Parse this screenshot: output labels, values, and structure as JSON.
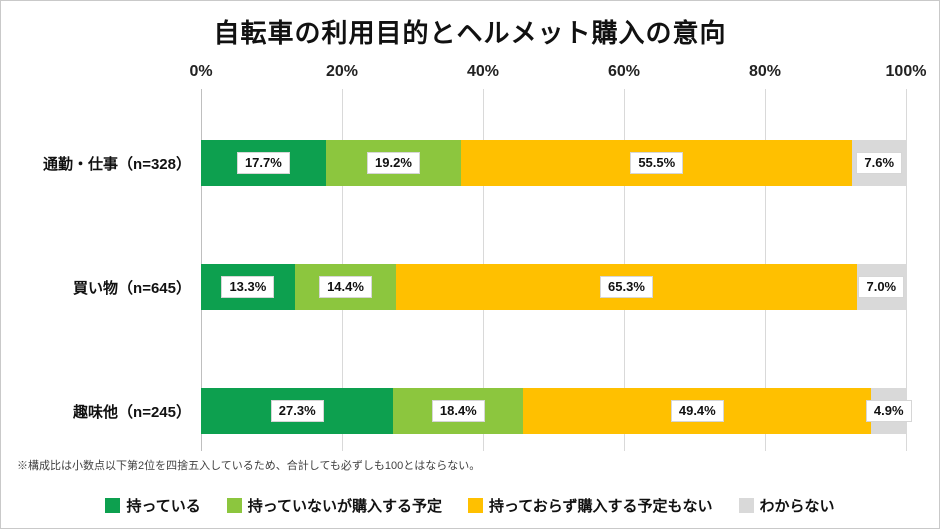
{
  "chart_data": {
    "type": "bar",
    "orientation": "horizontal",
    "stacked": true,
    "title": "自転車の利用目的とヘルメット購入の意向",
    "footnote": "※構成比は小数点以下第2位を四捨五入しているため、合計しても必ずしも100とはならない。",
    "x_ticks": [
      "0%",
      "20%",
      "40%",
      "60%",
      "80%",
      "100%"
    ],
    "xlim": [
      0,
      100
    ],
    "grid": true,
    "legend_position": "bottom",
    "categories": [
      "通勤・仕事（n=328）",
      "買い物（n=645）",
      "趣味他（n=245）"
    ],
    "series": [
      {
        "name": "持っている",
        "color": "#0da04f",
        "values": [
          17.7,
          13.3,
          27.3
        ]
      },
      {
        "name": "持っていないが購入する予定",
        "color": "#8cc63e",
        "values": [
          19.2,
          14.4,
          18.4
        ]
      },
      {
        "name": "持っておらず購入する予定もない",
        "color": "#ffc000",
        "values": [
          55.5,
          65.3,
          49.4
        ]
      },
      {
        "name": "わからない",
        "color": "#d9d9d9",
        "values": [
          7.6,
          7.0,
          4.9
        ]
      }
    ]
  }
}
